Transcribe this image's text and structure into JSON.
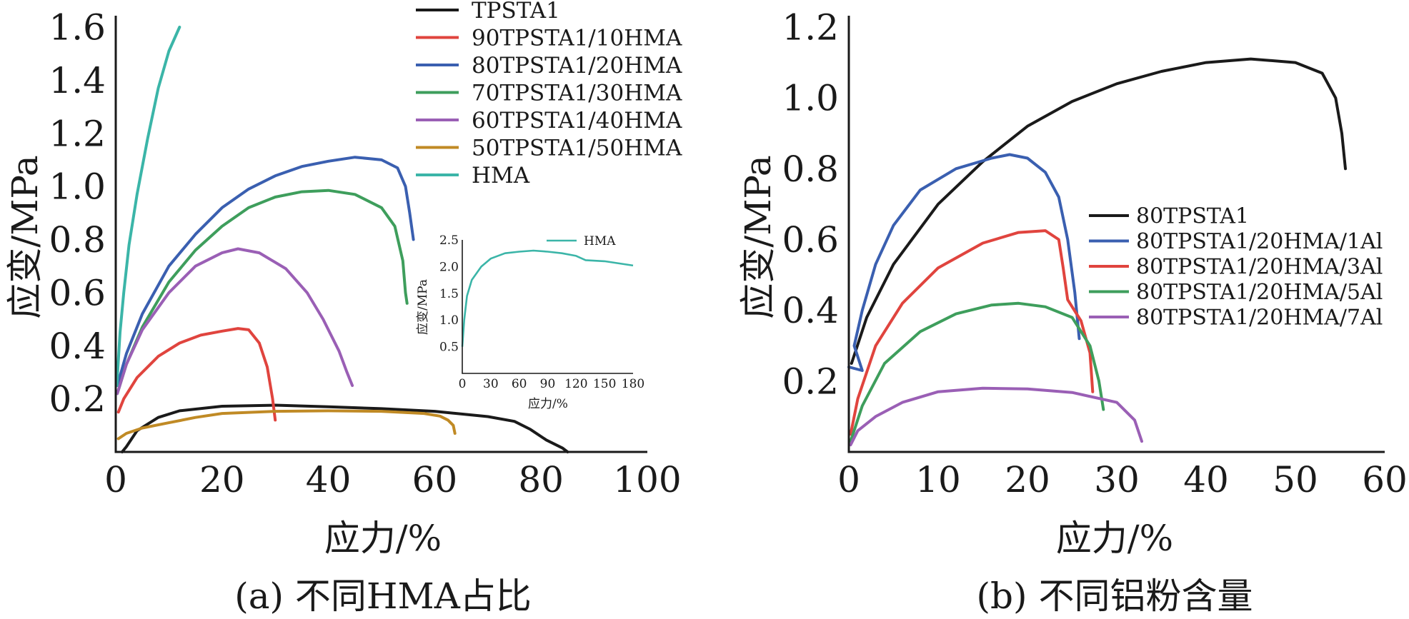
{
  "captions": {
    "a": "(a) 不同HMA占比",
    "b": "(b) 不同铝粉含量"
  },
  "chart_data": [
    {
      "id": "a",
      "type": "line",
      "xlabel": "应力/%",
      "ylabel": "应变/MPa",
      "xlim": [
        0,
        100
      ],
      "ylim": [
        0,
        1.6
      ],
      "xticks": [
        "0",
        "20",
        "40",
        "60",
        "80",
        "100"
      ],
      "yticks": [
        "0.2",
        "0.4",
        "0.6",
        "0.8",
        "1.0",
        "1.2",
        "1.4",
        "1.6"
      ],
      "legend_position": "top-right",
      "series": [
        {
          "name": "TPSTA1",
          "color": "#1a1a1a",
          "points": [
            [
              1.2,
              0.0
            ],
            [
              2,
              0.02
            ],
            [
              4,
              0.08
            ],
            [
              8,
              0.13
            ],
            [
              12,
              0.155
            ],
            [
              20,
              0.172
            ],
            [
              30,
              0.176
            ],
            [
              40,
              0.17
            ],
            [
              50,
              0.163
            ],
            [
              60,
              0.153
            ],
            [
              70,
              0.133
            ],
            [
              75,
              0.115
            ],
            [
              78,
              0.085
            ],
            [
              81,
              0.045
            ],
            [
              84,
              0.015
            ],
            [
              85,
              0.0
            ]
          ]
        },
        {
          "name": "90TPSTA1/10HMA",
          "color": "#e0443e",
          "points": [
            [
              0.5,
              0.15
            ],
            [
              1.5,
              0.2
            ],
            [
              4,
              0.28
            ],
            [
              8,
              0.36
            ],
            [
              12,
              0.41
            ],
            [
              16,
              0.44
            ],
            [
              20,
              0.455
            ],
            [
              23,
              0.465
            ],
            [
              25,
              0.46
            ],
            [
              27,
              0.41
            ],
            [
              28.5,
              0.32
            ],
            [
              29.5,
              0.2
            ],
            [
              30,
              0.12
            ]
          ]
        },
        {
          "name": "80TPSTA1/20HMA",
          "color": "#3a5fb0",
          "points": [
            [
              0.3,
              0.25
            ],
            [
              2,
              0.37
            ],
            [
              5,
              0.52
            ],
            [
              10,
              0.7
            ],
            [
              15,
              0.82
            ],
            [
              20,
              0.92
            ],
            [
              25,
              0.99
            ],
            [
              30,
              1.04
            ],
            [
              35,
              1.075
            ],
            [
              40,
              1.095
            ],
            [
              45,
              1.11
            ],
            [
              50,
              1.1
            ],
            [
              53,
              1.07
            ],
            [
              54.5,
              1.0
            ],
            [
              55.3,
              0.9
            ],
            [
              56,
              0.8
            ]
          ]
        },
        {
          "name": "70TPSTA1/30HMA",
          "color": "#3e9e5c",
          "points": [
            [
              0.3,
              0.22
            ],
            [
              2,
              0.33
            ],
            [
              5,
              0.47
            ],
            [
              10,
              0.64
            ],
            [
              15,
              0.76
            ],
            [
              20,
              0.85
            ],
            [
              25,
              0.92
            ],
            [
              30,
              0.96
            ],
            [
              35,
              0.98
            ],
            [
              40,
              0.985
            ],
            [
              45,
              0.97
            ],
            [
              50,
              0.92
            ],
            [
              52.5,
              0.85
            ],
            [
              54,
              0.72
            ],
            [
              54.5,
              0.6
            ],
            [
              54.8,
              0.56
            ]
          ]
        },
        {
          "name": "60TPSTA1/40HMA",
          "color": "#9a5fb5",
          "points": [
            [
              0.3,
              0.22
            ],
            [
              2,
              0.33
            ],
            [
              5,
              0.46
            ],
            [
              10,
              0.6
            ],
            [
              15,
              0.7
            ],
            [
              20,
              0.75
            ],
            [
              23,
              0.765
            ],
            [
              27,
              0.75
            ],
            [
              32,
              0.69
            ],
            [
              36,
              0.6
            ],
            [
              39,
              0.5
            ],
            [
              42,
              0.38
            ],
            [
              43.5,
              0.3
            ],
            [
              44.5,
              0.25
            ]
          ]
        },
        {
          "name": "50TPSTA1/50HMA",
          "color": "#c08a25",
          "points": [
            [
              0.5,
              0.05
            ],
            [
              2,
              0.07
            ],
            [
              5,
              0.09
            ],
            [
              10,
              0.11
            ],
            [
              15,
              0.13
            ],
            [
              20,
              0.145
            ],
            [
              30,
              0.153
            ],
            [
              40,
              0.155
            ],
            [
              50,
              0.153
            ],
            [
              58,
              0.145
            ],
            [
              61,
              0.135
            ],
            [
              62.5,
              0.12
            ],
            [
              63.5,
              0.1
            ],
            [
              63.8,
              0.07
            ]
          ]
        },
        {
          "name": "HMA",
          "color": "#3bb5a8",
          "points": [
            [
              0.2,
              0.25
            ],
            [
              0.8,
              0.45
            ],
            [
              1.5,
              0.6
            ],
            [
              2.5,
              0.78
            ],
            [
              4,
              0.97
            ],
            [
              6,
              1.18
            ],
            [
              8,
              1.37
            ],
            [
              10,
              1.51
            ],
            [
              12,
              1.6
            ]
          ]
        }
      ],
      "inset": {
        "type": "line",
        "xlabel": "应力/%",
        "ylabel": "应变/MPa",
        "xlim": [
          0,
          180
        ],
        "ylim": [
          0,
          2.5
        ],
        "xticks": [
          "0",
          "30",
          "60",
          "90",
          "120",
          "150",
          "180"
        ],
        "yticks": [
          "0.5",
          "1.0",
          "1.5",
          "2.0",
          "2.5"
        ],
        "series": [
          {
            "name": "HMA",
            "color": "#3bb5a8",
            "points": [
              [
                0,
                0.5
              ],
              [
                2,
                1.0
              ],
              [
                5,
                1.45
              ],
              [
                10,
                1.75
              ],
              [
                20,
                2.0
              ],
              [
                30,
                2.15
              ],
              [
                45,
                2.25
              ],
              [
                60,
                2.28
              ],
              [
                75,
                2.3
              ],
              [
                90,
                2.28
              ],
              [
                105,
                2.25
              ],
              [
                120,
                2.2
              ],
              [
                130,
                2.12
              ],
              [
                150,
                2.1
              ],
              [
                165,
                2.06
              ],
              [
                180,
                2.02
              ]
            ]
          }
        ]
      }
    },
    {
      "id": "b",
      "type": "line",
      "xlabel": "应力/%",
      "ylabel": "应变/MPa",
      "xlim": [
        0,
        60
      ],
      "ylim": [
        0,
        1.2
      ],
      "xticks": [
        "0",
        "10",
        "20",
        "30",
        "40",
        "50",
        "60"
      ],
      "yticks": [
        "0.2",
        "0.4",
        "0.6",
        "0.8",
        "1.0",
        "1.2"
      ],
      "legend_position": "right",
      "series": [
        {
          "name": "80TPSTA1",
          "color": "#1a1a1a",
          "points": [
            [
              0.3,
              0.25
            ],
            [
              2,
              0.38
            ],
            [
              5,
              0.53
            ],
            [
              10,
              0.7
            ],
            [
              15,
              0.82
            ],
            [
              20,
              0.92
            ],
            [
              25,
              0.99
            ],
            [
              30,
              1.04
            ],
            [
              35,
              1.075
            ],
            [
              40,
              1.1
            ],
            [
              45,
              1.11
            ],
            [
              50,
              1.1
            ],
            [
              53,
              1.07
            ],
            [
              54.5,
              1.0
            ],
            [
              55.2,
              0.9
            ],
            [
              55.6,
              0.8
            ]
          ]
        },
        {
          "name": "80TPSTA1/20HMA/1Al",
          "color": "#3a5fb0",
          "points": [
            [
              0,
              0.24
            ],
            [
              1.5,
              0.23
            ],
            [
              0.6,
              0.3
            ],
            [
              1.5,
              0.4
            ],
            [
              3,
              0.53
            ],
            [
              5,
              0.64
            ],
            [
              8,
              0.74
            ],
            [
              12,
              0.8
            ],
            [
              16,
              0.83
            ],
            [
              18,
              0.84
            ],
            [
              20,
              0.83
            ],
            [
              22,
              0.79
            ],
            [
              23.5,
              0.72
            ],
            [
              24.5,
              0.6
            ],
            [
              25.3,
              0.45
            ],
            [
              25.8,
              0.32
            ]
          ]
        },
        {
          "name": "80TPSTA1/20HMA/3Al",
          "color": "#e0443e",
          "points": [
            [
              0.2,
              0.05
            ],
            [
              1,
              0.15
            ],
            [
              3,
              0.3
            ],
            [
              6,
              0.42
            ],
            [
              10,
              0.52
            ],
            [
              15,
              0.59
            ],
            [
              19,
              0.62
            ],
            [
              22,
              0.625
            ],
            [
              23.5,
              0.6
            ],
            [
              24,
              0.52
            ],
            [
              24.5,
              0.43
            ],
            [
              26,
              0.37
            ],
            [
              27,
              0.28
            ],
            [
              27.3,
              0.17
            ]
          ]
        },
        {
          "name": "80TPSTA1/20HMA/5Al",
          "color": "#3e9e5c",
          "points": [
            [
              0.2,
              0.03
            ],
            [
              1.5,
              0.13
            ],
            [
              4,
              0.25
            ],
            [
              8,
              0.34
            ],
            [
              12,
              0.39
            ],
            [
              16,
              0.415
            ],
            [
              19,
              0.42
            ],
            [
              22,
              0.41
            ],
            [
              25,
              0.38
            ],
            [
              27,
              0.3
            ],
            [
              28,
              0.2
            ],
            [
              28.5,
              0.12
            ]
          ]
        },
        {
          "name": "80TPSTA1/20HMA/7Al",
          "color": "#9a5fb5",
          "points": [
            [
              0.2,
              0.02
            ],
            [
              1,
              0.06
            ],
            [
              3,
              0.1
            ],
            [
              6,
              0.14
            ],
            [
              10,
              0.17
            ],
            [
              15,
              0.18
            ],
            [
              20,
              0.178
            ],
            [
              25,
              0.168
            ],
            [
              30,
              0.14
            ],
            [
              32,
              0.09
            ],
            [
              32.8,
              0.03
            ]
          ]
        }
      ]
    }
  ]
}
